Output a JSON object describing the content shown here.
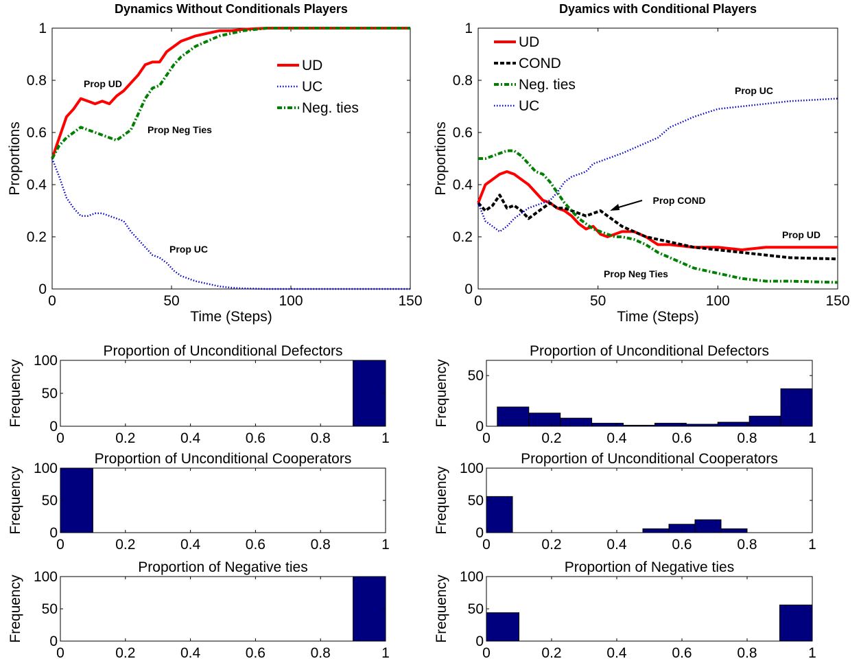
{
  "chart_data": [
    {
      "type": "line",
      "title": "Dynamics Without Conditionals Players",
      "xlabel": "Time (Steps)",
      "ylabel": "Proportions",
      "xlim": [
        0,
        150
      ],
      "ylim": [
        0,
        1
      ],
      "xticks": [
        "0",
        "50",
        "100",
        "150"
      ],
      "yticks": [
        "0",
        "0.2",
        "0.4",
        "0.6",
        "0.8",
        "1"
      ],
      "legend_position": "top-right",
      "annotations": [
        "Prop UD",
        "Prop Neg Ties",
        "Prop UC"
      ],
      "series": [
        {
          "name": "UD",
          "color": "#ff0000",
          "style": "solid",
          "x": [
            0,
            3,
            6,
            9,
            12,
            15,
            18,
            21,
            24,
            27,
            30,
            33,
            36,
            39,
            42,
            45,
            48,
            51,
            54,
            57,
            60,
            65,
            70,
            75,
            80,
            85,
            90,
            95,
            100,
            150
          ],
          "y": [
            0.5,
            0.58,
            0.66,
            0.69,
            0.73,
            0.72,
            0.71,
            0.72,
            0.71,
            0.74,
            0.76,
            0.79,
            0.82,
            0.86,
            0.87,
            0.87,
            0.91,
            0.93,
            0.95,
            0.96,
            0.97,
            0.98,
            0.99,
            0.99,
            0.995,
            0.998,
            1.0,
            1.0,
            1.0,
            1.0
          ]
        },
        {
          "name": "UC",
          "color": "#0000cc",
          "style": "dotted",
          "x": [
            0,
            3,
            6,
            9,
            12,
            15,
            18,
            21,
            24,
            27,
            30,
            33,
            36,
            39,
            42,
            45,
            48,
            51,
            54,
            57,
            60,
            65,
            70,
            75,
            80,
            90,
            100,
            150
          ],
          "y": [
            0.5,
            0.43,
            0.35,
            0.31,
            0.28,
            0.28,
            0.29,
            0.29,
            0.28,
            0.27,
            0.26,
            0.22,
            0.19,
            0.16,
            0.13,
            0.12,
            0.1,
            0.07,
            0.05,
            0.04,
            0.03,
            0.02,
            0.01,
            0.005,
            0.002,
            0.0,
            0.0,
            0.0
          ]
        },
        {
          "name": "Neg. ties",
          "color": "#008000",
          "style": "dashdot",
          "x": [
            0,
            3,
            6,
            9,
            12,
            15,
            18,
            21,
            24,
            27,
            30,
            33,
            36,
            39,
            42,
            45,
            48,
            51,
            54,
            57,
            60,
            65,
            70,
            75,
            80,
            85,
            90,
            95,
            100,
            150
          ],
          "y": [
            0.5,
            0.55,
            0.58,
            0.6,
            0.62,
            0.61,
            0.6,
            0.59,
            0.58,
            0.57,
            0.59,
            0.61,
            0.67,
            0.73,
            0.77,
            0.78,
            0.82,
            0.86,
            0.89,
            0.91,
            0.93,
            0.95,
            0.97,
            0.98,
            0.99,
            0.995,
            1.0,
            1.0,
            1.0,
            1.0
          ]
        }
      ]
    },
    {
      "type": "line",
      "title": "Dyamics with Conditional Players",
      "xlabel": "Time (Steps)",
      "ylabel": "Proportions",
      "xlim": [
        0,
        150
      ],
      "ylim": [
        0,
        1
      ],
      "xticks": [
        "0",
        "50",
        "100",
        "150"
      ],
      "yticks": [
        "0",
        "0.2",
        "0.4",
        "0.6",
        "0.8",
        "1"
      ],
      "legend_position": "top-left",
      "annotations": [
        "Prop UC",
        "Prop COND",
        "Prop UD",
        "Prop Neg Ties"
      ],
      "series": [
        {
          "name": "UD",
          "color": "#ff0000",
          "style": "solid",
          "x": [
            0,
            3,
            6,
            9,
            12,
            15,
            18,
            21,
            24,
            27,
            30,
            33,
            36,
            39,
            42,
            45,
            48,
            51,
            54,
            57,
            60,
            65,
            70,
            75,
            80,
            90,
            100,
            110,
            120,
            130,
            150
          ],
          "y": [
            0.33,
            0.4,
            0.42,
            0.44,
            0.45,
            0.44,
            0.42,
            0.4,
            0.37,
            0.34,
            0.33,
            0.31,
            0.3,
            0.28,
            0.25,
            0.23,
            0.24,
            0.21,
            0.2,
            0.21,
            0.22,
            0.22,
            0.2,
            0.17,
            0.17,
            0.16,
            0.16,
            0.15,
            0.16,
            0.16,
            0.16
          ]
        },
        {
          "name": "COND",
          "color": "#000000",
          "style": "dashed",
          "x": [
            0,
            3,
            6,
            9,
            12,
            15,
            18,
            21,
            24,
            27,
            30,
            33,
            36,
            39,
            42,
            45,
            48,
            51,
            54,
            57,
            60,
            65,
            70,
            75,
            80,
            90,
            100,
            110,
            120,
            130,
            150
          ],
          "y": [
            0.33,
            0.3,
            0.32,
            0.36,
            0.31,
            0.32,
            0.3,
            0.27,
            0.29,
            0.31,
            0.33,
            0.31,
            0.31,
            0.3,
            0.29,
            0.28,
            0.29,
            0.3,
            0.28,
            0.26,
            0.24,
            0.22,
            0.2,
            0.19,
            0.18,
            0.16,
            0.15,
            0.14,
            0.13,
            0.12,
            0.115
          ]
        },
        {
          "name": "Neg. ties",
          "color": "#008000",
          "style": "dashdot",
          "x": [
            0,
            3,
            6,
            9,
            12,
            15,
            18,
            21,
            24,
            27,
            30,
            33,
            36,
            39,
            42,
            45,
            48,
            51,
            54,
            57,
            60,
            65,
            70,
            75,
            80,
            90,
            100,
            110,
            120,
            130,
            150
          ],
          "y": [
            0.5,
            0.5,
            0.51,
            0.52,
            0.53,
            0.53,
            0.51,
            0.48,
            0.45,
            0.44,
            0.41,
            0.37,
            0.33,
            0.3,
            0.27,
            0.25,
            0.23,
            0.22,
            0.21,
            0.2,
            0.2,
            0.19,
            0.17,
            0.14,
            0.12,
            0.08,
            0.06,
            0.04,
            0.03,
            0.03,
            0.025
          ]
        },
        {
          "name": "UC",
          "color": "#0000cc",
          "style": "dotted",
          "x": [
            0,
            3,
            6,
            9,
            12,
            15,
            18,
            21,
            24,
            27,
            30,
            33,
            36,
            39,
            42,
            45,
            48,
            51,
            54,
            57,
            60,
            65,
            70,
            75,
            80,
            90,
            100,
            110,
            120,
            130,
            150
          ],
          "y": [
            0.33,
            0.26,
            0.24,
            0.22,
            0.24,
            0.27,
            0.29,
            0.31,
            0.32,
            0.33,
            0.34,
            0.37,
            0.41,
            0.43,
            0.44,
            0.45,
            0.48,
            0.49,
            0.5,
            0.51,
            0.52,
            0.54,
            0.56,
            0.58,
            0.62,
            0.66,
            0.69,
            0.7,
            0.71,
            0.72,
            0.73
          ]
        }
      ]
    },
    {
      "type": "bar",
      "title": "Proportion of Unconditional Defectors",
      "ylabel": "Frequency",
      "xlim": [
        0,
        1
      ],
      "ylim": [
        0,
        100
      ],
      "xticks": [
        "0",
        "0.2",
        "0.4",
        "0.6",
        "0.8",
        "1"
      ],
      "yticks": [
        "0",
        "50",
        "100"
      ],
      "bin_edges": [
        0.9,
        1.0
      ],
      "values": [
        100
      ]
    },
    {
      "type": "bar",
      "title": "Proportion of Unconditional Cooperators",
      "ylabel": "Frequency",
      "xlim": [
        0,
        1
      ],
      "ylim": [
        0,
        100
      ],
      "xticks": [
        "0",
        "0.2",
        "0.4",
        "0.6",
        "0.8",
        "1"
      ],
      "yticks": [
        "0",
        "50",
        "100"
      ],
      "bin_edges": [
        0.0,
        0.1
      ],
      "values": [
        100
      ]
    },
    {
      "type": "bar",
      "title": "Proportion of Negative ties",
      "ylabel": "Frequency",
      "xlim": [
        0,
        1
      ],
      "ylim": [
        0,
        100
      ],
      "xticks": [
        "0",
        "0.2",
        "0.4",
        "0.6",
        "0.8",
        "1"
      ],
      "yticks": [
        "0",
        "50",
        "100"
      ],
      "bin_edges": [
        0.9,
        1.0
      ],
      "values": [
        100
      ]
    },
    {
      "type": "bar",
      "title": "Proportion of Unconditional Defectors",
      "ylabel": "Frequency",
      "xlim": [
        0,
        1
      ],
      "ylim": [
        0,
        65
      ],
      "xticks": [
        "0",
        "0.2",
        "0.4",
        "0.6",
        "0.8",
        "1"
      ],
      "yticks": [
        "0",
        "50"
      ],
      "bin_edges": [
        0.0333,
        0.13,
        0.2267,
        0.3233,
        0.42,
        0.5167,
        0.6133,
        0.71,
        0.8067,
        0.9033,
        1.0
      ],
      "values": [
        19,
        13,
        8,
        3,
        1,
        3,
        2,
        4,
        10,
        37
      ]
    },
    {
      "type": "bar",
      "title": "Proportion of Unconditional Cooperators",
      "ylabel": "Frequency",
      "xlim": [
        0,
        1
      ],
      "ylim": [
        0,
        100
      ],
      "xticks": [
        "0",
        "0.2",
        "0.4",
        "0.6",
        "0.8",
        "1"
      ],
      "yticks": [
        "0",
        "50",
        "100"
      ],
      "bin_edges": [
        0.0,
        0.08,
        0.16,
        0.24,
        0.32,
        0.4,
        0.48,
        0.56,
        0.64,
        0.72,
        0.8
      ],
      "values": [
        56,
        0,
        0,
        0,
        0,
        0,
        6,
        13,
        20,
        6
      ]
    },
    {
      "type": "bar",
      "title": "Proportion of Negative ties",
      "ylabel": "Frequency",
      "xlim": [
        0,
        1
      ],
      "ylim": [
        0,
        100
      ],
      "xticks": [
        "0",
        "0.2",
        "0.4",
        "0.6",
        "0.8",
        "1"
      ],
      "yticks": [
        "0",
        "50",
        "100"
      ],
      "bin_edges": [
        0.0,
        0.1,
        0.9,
        1.0
      ],
      "values": [
        44,
        0,
        56
      ]
    }
  ]
}
